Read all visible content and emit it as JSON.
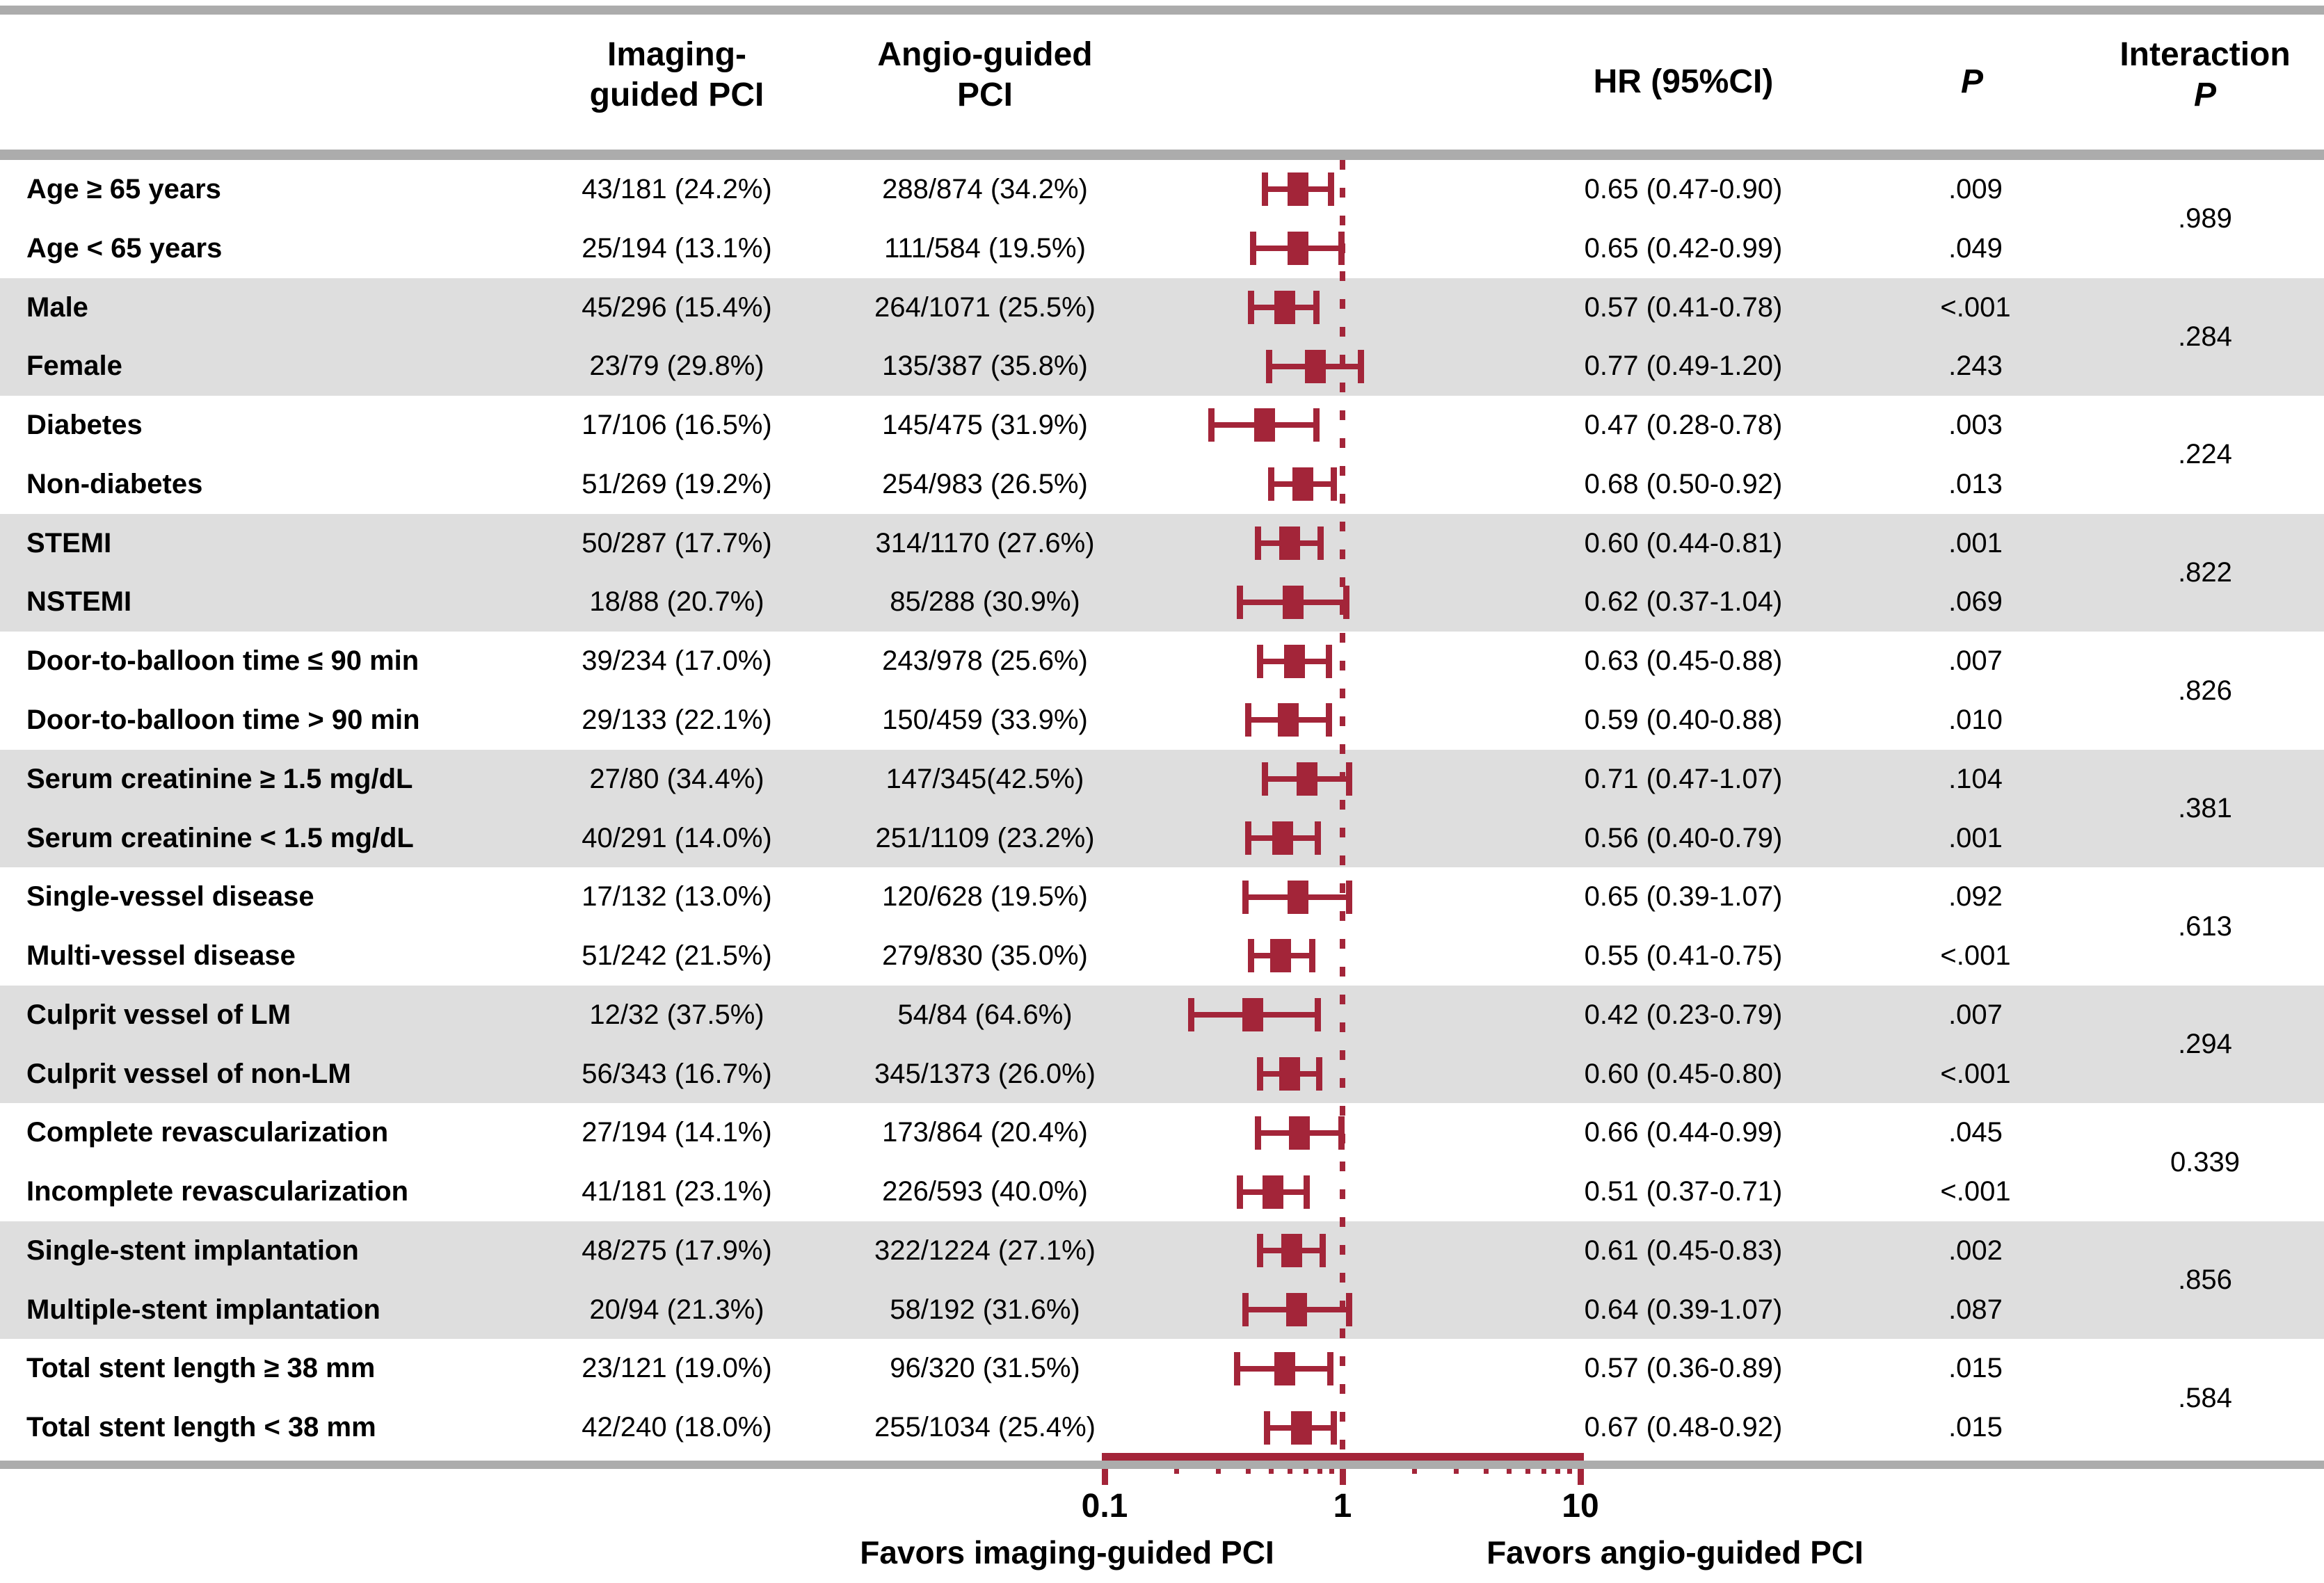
{
  "figure": {
    "header": {
      "imaging_line1": "Imaging-",
      "imaging_line2": "guided PCI",
      "angio_line1": "Angio-guided",
      "angio_line2": "PCI",
      "hr": "HR (95%CI)",
      "p": "P",
      "interaction_line1": "Interaction",
      "interaction_line2": "P"
    },
    "axis": {
      "tick_label_01": "0.1",
      "tick_label_1": "1",
      "tick_label_10": "10",
      "favors_left": "Favors imaging-guided PCI",
      "favors_right": "Favors angio-guided PCI"
    },
    "colors": {
      "marker": "#a32539",
      "band": "#dedede",
      "rule": "#acacac",
      "text": "#000000"
    }
  },
  "rows": [
    {
      "label": "Age ≥ 65 years",
      "imaging": "43/181 (24.2%)",
      "angio": "288/874 (34.2%)",
      "hr_text": "0.65 (0.47-0.90)",
      "p": ".009",
      "hr": 0.65,
      "lo": 0.47,
      "hi": 0.9
    },
    {
      "label": "Age < 65 years",
      "imaging": "25/194 (13.1%)",
      "angio": "111/584 (19.5%)",
      "hr_text": "0.65 (0.42-0.99)",
      "p": ".049",
      "hr": 0.65,
      "lo": 0.42,
      "hi": 0.99
    },
    {
      "label": "Male",
      "imaging": "45/296 (15.4%)",
      "angio": "264/1071 (25.5%)",
      "hr_text": "0.57 (0.41-0.78)",
      "p": "<.001",
      "hr": 0.57,
      "lo": 0.41,
      "hi": 0.78
    },
    {
      "label": "Female",
      "imaging": "23/79 (29.8%)",
      "angio": "135/387 (35.8%)",
      "hr_text": "0.77 (0.49-1.20)",
      "p": ".243",
      "hr": 0.77,
      "lo": 0.49,
      "hi": 1.2
    },
    {
      "label": "Diabetes",
      "imaging": "17/106 (16.5%)",
      "angio": "145/475 (31.9%)",
      "hr_text": "0.47 (0.28-0.78)",
      "p": ".003",
      "hr": 0.47,
      "lo": 0.28,
      "hi": 0.78
    },
    {
      "label": "Non-diabetes",
      "imaging": "51/269 (19.2%)",
      "angio": "254/983 (26.5%)",
      "hr_text": "0.68 (0.50-0.92)",
      "p": ".013",
      "hr": 0.68,
      "lo": 0.5,
      "hi": 0.92
    },
    {
      "label": "STEMI",
      "imaging": "50/287 (17.7%)",
      "angio": "314/1170 (27.6%)",
      "hr_text": "0.60 (0.44-0.81)",
      "p": ".001",
      "hr": 0.6,
      "lo": 0.44,
      "hi": 0.81
    },
    {
      "label": "NSTEMI",
      "imaging": "18/88 (20.7%)",
      "angio": "85/288 (30.9%)",
      "hr_text": "0.62 (0.37-1.04)",
      "p": ".069",
      "hr": 0.62,
      "lo": 0.37,
      "hi": 1.04
    },
    {
      "label": "Door-to-balloon  time ≤ 90 min",
      "imaging": "39/234 (17.0%)",
      "angio": "243/978 (25.6%)",
      "hr_text": "0.63 (0.45-0.88)",
      "p": ".007",
      "hr": 0.63,
      "lo": 0.45,
      "hi": 0.88
    },
    {
      "label": "Door-to-balloon  time > 90 min",
      "imaging": "29/133 (22.1%)",
      "angio": "150/459 (33.9%)",
      "hr_text": "0.59 (0.40-0.88)",
      "p": ".010",
      "hr": 0.59,
      "lo": 0.4,
      "hi": 0.88
    },
    {
      "label": "Serum creatinine ≥ 1.5 mg/dL",
      "imaging": "27/80 (34.4%)",
      "angio": "147/345(42.5%)",
      "hr_text": "0.71 (0.47-1.07)",
      "p": ".104",
      "hr": 0.71,
      "lo": 0.47,
      "hi": 1.07
    },
    {
      "label": "Serum creatinine < 1.5 mg/dL",
      "imaging": "40/291 (14.0%)",
      "angio": "251/1109 (23.2%)",
      "hr_text": "0.56 (0.40-0.79)",
      "p": ".001",
      "hr": 0.56,
      "lo": 0.4,
      "hi": 0.79
    },
    {
      "label": "Single-vessel disease",
      "imaging": "17/132 (13.0%)",
      "angio": "120/628 (19.5%)",
      "hr_text": "0.65 (0.39-1.07)",
      "p": ".092",
      "hr": 0.65,
      "lo": 0.39,
      "hi": 1.07
    },
    {
      "label": "Multi-vessel disease",
      "imaging": "51/242 (21.5%)",
      "angio": "279/830 (35.0%)",
      "hr_text": "0.55 (0.41-0.75)",
      "p": "<.001",
      "hr": 0.55,
      "lo": 0.41,
      "hi": 0.75
    },
    {
      "label": "Culprit vessel of LM",
      "imaging": "12/32 (37.5%)",
      "angio": "54/84 (64.6%)",
      "hr_text": "0.42 (0.23-0.79)",
      "p": ".007",
      "hr": 0.42,
      "lo": 0.23,
      "hi": 0.79
    },
    {
      "label": "Culprit vessel of non-LM",
      "imaging": "56/343 (16.7%)",
      "angio": "345/1373 (26.0%)",
      "hr_text": "0.60 (0.45-0.80)",
      "p": "<.001",
      "hr": 0.6,
      "lo": 0.45,
      "hi": 0.8
    },
    {
      "label": "Complete revascularization",
      "imaging": "27/194 (14.1%)",
      "angio": "173/864 (20.4%)",
      "hr_text": "0.66 (0.44-0.99)",
      "p": ".045",
      "hr": 0.66,
      "lo": 0.44,
      "hi": 0.99
    },
    {
      "label": "Incomplete revascularization",
      "imaging": "41/181 (23.1%)",
      "angio": "226/593 (40.0%)",
      "hr_text": "0.51 (0.37-0.71)",
      "p": "<.001",
      "hr": 0.51,
      "lo": 0.37,
      "hi": 0.71
    },
    {
      "label": "Single-stent implantation",
      "imaging": "48/275 (17.9%)",
      "angio": "322/1224 (27.1%)",
      "hr_text": "0.61 (0.45-0.83)",
      "p": ".002",
      "hr": 0.61,
      "lo": 0.45,
      "hi": 0.83
    },
    {
      "label": "Multiple-stent implantation",
      "imaging": "20/94 (21.3%)",
      "angio": "58/192 (31.6%)",
      "hr_text": "0.64 (0.39-1.07)",
      "p": ".087",
      "hr": 0.64,
      "lo": 0.39,
      "hi": 1.07
    },
    {
      "label": "Total stent length ≥ 38 mm",
      "imaging": "23/121 (19.0%)",
      "angio": "96/320 (31.5%)",
      "hr_text": "0.57 (0.36-0.89)",
      "p": ".015",
      "hr": 0.57,
      "lo": 0.36,
      "hi": 0.89
    },
    {
      "label": "Total stent length < 38 mm",
      "imaging": "42/240 (18.0%)",
      "angio": "255/1034 (25.4%)",
      "hr_text": "0.67 (0.48-0.92)",
      "p": ".015",
      "hr": 0.67,
      "lo": 0.48,
      "hi": 0.92
    }
  ],
  "interaction_p": [
    ".989",
    ".284",
    ".224",
    ".822",
    ".826",
    ".381",
    ".613",
    ".294",
    "0.339",
    ".856",
    ".584"
  ],
  "shaded_pairs": [
    1,
    3,
    5,
    7,
    9
  ],
  "chart_data": {
    "type": "scatter",
    "variant": "forest-plot",
    "title": "",
    "xlabel": "",
    "ylabel": "",
    "xscale": "log",
    "xlim": [
      0.1,
      10
    ],
    "xticks": [
      0.1,
      1,
      10
    ],
    "minor_xticks": [
      0.2,
      0.3,
      0.4,
      0.5,
      0.6,
      0.7,
      0.8,
      0.9,
      2,
      3,
      4,
      5,
      6,
      7,
      8,
      9
    ],
    "reference_line": 1,
    "legend_position": "none",
    "grid": false,
    "annotation_left": "Favors imaging-guided PCI",
    "annotation_right": "Favors angio-guided PCI",
    "series": [
      {
        "name": "HR (95%CI)",
        "points": [
          {
            "subgroup": "Age ≥ 65 years",
            "hr": 0.65,
            "lo": 0.47,
            "hi": 0.9,
            "p": ".009",
            "interaction_p": ".989"
          },
          {
            "subgroup": "Age < 65 years",
            "hr": 0.65,
            "lo": 0.42,
            "hi": 0.99,
            "p": ".049",
            "interaction_p": ".989"
          },
          {
            "subgroup": "Male",
            "hr": 0.57,
            "lo": 0.41,
            "hi": 0.78,
            "p": "<.001",
            "interaction_p": ".284"
          },
          {
            "subgroup": "Female",
            "hr": 0.77,
            "lo": 0.49,
            "hi": 1.2,
            "p": ".243",
            "interaction_p": ".284"
          },
          {
            "subgroup": "Diabetes",
            "hr": 0.47,
            "lo": 0.28,
            "hi": 0.78,
            "p": ".003",
            "interaction_p": ".224"
          },
          {
            "subgroup": "Non-diabetes",
            "hr": 0.68,
            "lo": 0.5,
            "hi": 0.92,
            "p": ".013",
            "interaction_p": ".224"
          },
          {
            "subgroup": "STEMI",
            "hr": 0.6,
            "lo": 0.44,
            "hi": 0.81,
            "p": ".001",
            "interaction_p": ".822"
          },
          {
            "subgroup": "NSTEMI",
            "hr": 0.62,
            "lo": 0.37,
            "hi": 1.04,
            "p": ".069",
            "interaction_p": ".822"
          },
          {
            "subgroup": "Door-to-balloon time ≤ 90 min",
            "hr": 0.63,
            "lo": 0.45,
            "hi": 0.88,
            "p": ".007",
            "interaction_p": ".826"
          },
          {
            "subgroup": "Door-to-balloon time > 90 min",
            "hr": 0.59,
            "lo": 0.4,
            "hi": 0.88,
            "p": ".010",
            "interaction_p": ".826"
          },
          {
            "subgroup": "Serum creatinine ≥ 1.5 mg/dL",
            "hr": 0.71,
            "lo": 0.47,
            "hi": 1.07,
            "p": ".104",
            "interaction_p": ".381"
          },
          {
            "subgroup": "Serum creatinine < 1.5 mg/dL",
            "hr": 0.56,
            "lo": 0.4,
            "hi": 0.79,
            "p": ".001",
            "interaction_p": ".381"
          },
          {
            "subgroup": "Single-vessel disease",
            "hr": 0.65,
            "lo": 0.39,
            "hi": 1.07,
            "p": ".092",
            "interaction_p": ".613"
          },
          {
            "subgroup": "Multi-vessel disease",
            "hr": 0.55,
            "lo": 0.41,
            "hi": 0.75,
            "p": "<.001",
            "interaction_p": ".613"
          },
          {
            "subgroup": "Culprit vessel of LM",
            "hr": 0.42,
            "lo": 0.23,
            "hi": 0.79,
            "p": ".007",
            "interaction_p": ".294"
          },
          {
            "subgroup": "Culprit vessel of non-LM",
            "hr": 0.6,
            "lo": 0.45,
            "hi": 0.8,
            "p": "<.001",
            "interaction_p": ".294"
          },
          {
            "subgroup": "Complete revascularization",
            "hr": 0.66,
            "lo": 0.44,
            "hi": 0.99,
            "p": ".045",
            "interaction_p": "0.339"
          },
          {
            "subgroup": "Incomplete revascularization",
            "hr": 0.51,
            "lo": 0.37,
            "hi": 0.71,
            "p": "<.001",
            "interaction_p": "0.339"
          },
          {
            "subgroup": "Single-stent implantation",
            "hr": 0.61,
            "lo": 0.45,
            "hi": 0.83,
            "p": ".002",
            "interaction_p": ".856"
          },
          {
            "subgroup": "Multiple-stent implantation",
            "hr": 0.64,
            "lo": 0.39,
            "hi": 1.07,
            "p": ".087",
            "interaction_p": ".856"
          },
          {
            "subgroup": "Total stent length ≥ 38 mm",
            "hr": 0.57,
            "lo": 0.36,
            "hi": 0.89,
            "p": ".015",
            "interaction_p": ".584"
          },
          {
            "subgroup": "Total stent length < 38 mm",
            "hr": 0.67,
            "lo": 0.48,
            "hi": 0.92,
            "p": ".015",
            "interaction_p": ".584"
          }
        ]
      }
    ]
  }
}
